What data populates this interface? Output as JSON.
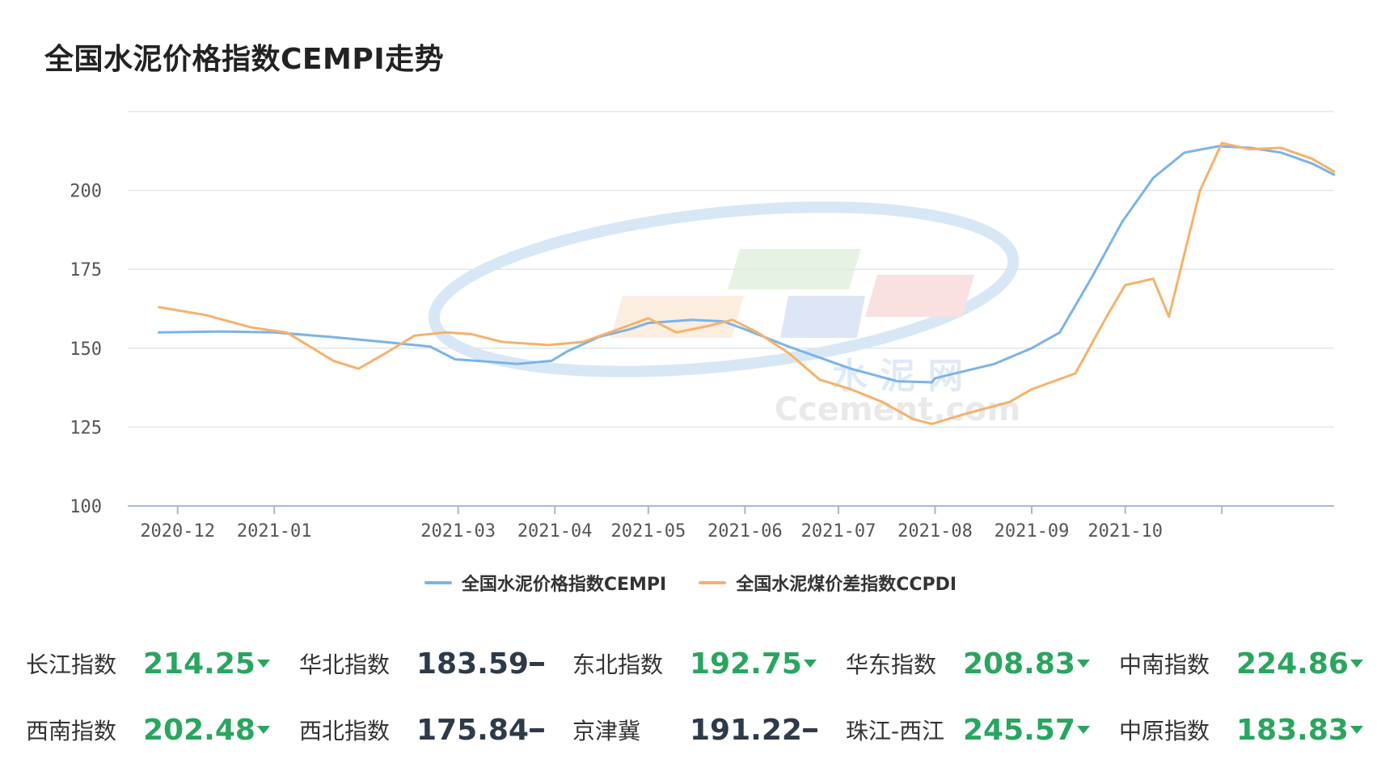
{
  "title": "全国水泥价格指数CEMPI走势",
  "watermark": {
    "cn": "水 泥 网",
    "en": "Ccement.com"
  },
  "colors": {
    "cempi": "#7bb3e8",
    "ccpdi": "#f5b26b",
    "green": "#2aa55f",
    "dark": "#2e3a48",
    "grid": "#e2e6ec"
  },
  "legend": [
    {
      "name": "全国水泥价格指数CEMPI",
      "color": "#7bb3e8"
    },
    {
      "name": "全国水泥煤价差指数CCPDI",
      "color": "#f5b26b"
    }
  ],
  "chart_data": {
    "type": "line",
    "title": "全国水泥价格指数CEMPI走势",
    "x_ticks": [
      "2020-12",
      "2021-01",
      "2021-03",
      "2021-04",
      "2021-05",
      "2021-06",
      "2021-07",
      "2021-08",
      "2021-09",
      "2021-10"
    ],
    "y_ticks": [
      100,
      125,
      150,
      175,
      200
    ],
    "ylim": [
      100,
      225
    ],
    "grid": true,
    "legend_position": "bottom",
    "series": [
      {
        "name": "全国水泥价格指数CEMPI",
        "color": "#7bb3e8",
        "points": [
          [
            "2020-11-25",
            155.0
          ],
          [
            "2020-12-15",
            155.3
          ],
          [
            "2021-01-01",
            155.0
          ],
          [
            "2021-01-20",
            153.5
          ],
          [
            "2021-02-05",
            152.0
          ],
          [
            "2021-02-20",
            150.5
          ],
          [
            "2021-02-28",
            146.5
          ],
          [
            "2021-03-10",
            145.8
          ],
          [
            "2021-03-20",
            145.0
          ],
          [
            "2021-03-31",
            146.0
          ],
          [
            "2021-04-05",
            149.0
          ],
          [
            "2021-04-15",
            153.5
          ],
          [
            "2021-04-25",
            156.0
          ],
          [
            "2021-05-01",
            158.0
          ],
          [
            "2021-05-15",
            159.0
          ],
          [
            "2021-05-25",
            158.5
          ],
          [
            "2021-06-01",
            156.0
          ],
          [
            "2021-06-15",
            150.5
          ],
          [
            "2021-06-25",
            147.0
          ],
          [
            "2021-07-05",
            143.5
          ],
          [
            "2021-07-20",
            139.5
          ],
          [
            "2021-07-31",
            139.2
          ],
          [
            "2021-08-01",
            140.5
          ],
          [
            "2021-08-20",
            145.0
          ],
          [
            "2021-09-01",
            150.0
          ],
          [
            "2021-09-10",
            155.0
          ],
          [
            "2021-09-20",
            172.0
          ],
          [
            "2021-09-30",
            190.0
          ],
          [
            "2021-10-10",
            204.0
          ],
          [
            "2021-10-20",
            212.0
          ],
          [
            "2021-10-31",
            214.0
          ],
          [
            "2021-11-10",
            213.5
          ],
          [
            "2021-11-20",
            212.0
          ],
          [
            "2021-11-30",
            208.5
          ],
          [
            "2021-12-07",
            205.0
          ]
        ]
      },
      {
        "name": "全国水泥煤价差指数CCPDI",
        "color": "#f5b26b",
        "points": [
          [
            "2020-11-25",
            163.0
          ],
          [
            "2020-12-10",
            160.5
          ],
          [
            "2020-12-25",
            156.5
          ],
          [
            "2021-01-05",
            155.0
          ],
          [
            "2021-01-20",
            146.0
          ],
          [
            "2021-01-28",
            143.5
          ],
          [
            "2021-02-05",
            148.0
          ],
          [
            "2021-02-15",
            154.0
          ],
          [
            "2021-02-25",
            155.0
          ],
          [
            "2021-03-05",
            154.5
          ],
          [
            "2021-03-15",
            152.0
          ],
          [
            "2021-03-30",
            151.0
          ],
          [
            "2021-04-10",
            152.0
          ],
          [
            "2021-04-20",
            155.5
          ],
          [
            "2021-05-01",
            159.5
          ],
          [
            "2021-05-10",
            155.0
          ],
          [
            "2021-05-20",
            157.0
          ],
          [
            "2021-05-28",
            159.0
          ],
          [
            "2021-06-05",
            155.0
          ],
          [
            "2021-06-15",
            148.5
          ],
          [
            "2021-06-25",
            140.0
          ],
          [
            "2021-07-05",
            137.0
          ],
          [
            "2021-07-15",
            133.0
          ],
          [
            "2021-07-25",
            127.5
          ],
          [
            "2021-07-31",
            126.0
          ],
          [
            "2021-08-10",
            129.0
          ],
          [
            "2021-08-25",
            133.0
          ],
          [
            "2021-09-01",
            137.0
          ],
          [
            "2021-09-15",
            142.0
          ],
          [
            "2021-09-25",
            160.0
          ],
          [
            "2021-10-01",
            170.0
          ],
          [
            "2021-10-10",
            172.0
          ],
          [
            "2021-10-15",
            160.0
          ],
          [
            "2021-10-25",
            200.0
          ],
          [
            "2021-11-01",
            215.0
          ],
          [
            "2021-11-10",
            213.0
          ],
          [
            "2021-11-20",
            213.5
          ],
          [
            "2021-11-30",
            210.0
          ],
          [
            "2021-12-07",
            206.0
          ]
        ]
      }
    ]
  },
  "indices": [
    [
      {
        "label": "长江指数",
        "value": "214.25",
        "trend": "down"
      },
      {
        "label": "华北指数",
        "value": "183.59",
        "trend": "flat"
      },
      {
        "label": "东北指数",
        "value": "192.75",
        "trend": "down"
      },
      {
        "label": "华东指数",
        "value": "208.83",
        "trend": "down"
      },
      {
        "label": "中南指数",
        "value": "224.86",
        "trend": "down"
      }
    ],
    [
      {
        "label": "西南指数",
        "value": "202.48",
        "trend": "down"
      },
      {
        "label": "西北指数",
        "value": "175.84",
        "trend": "flat"
      },
      {
        "label": "京津冀",
        "value": "191.22",
        "trend": "flat"
      },
      {
        "label": "珠江-西江",
        "value": "245.57",
        "trend": "down"
      },
      {
        "label": "中原指数",
        "value": "183.83",
        "trend": "down"
      }
    ]
  ]
}
